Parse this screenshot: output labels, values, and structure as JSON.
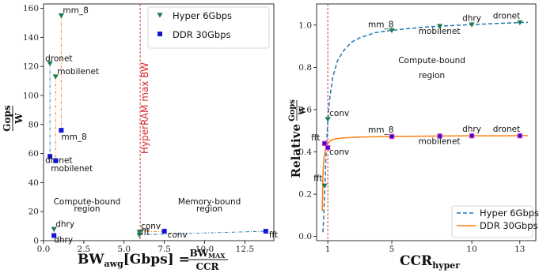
{
  "colors": {
    "hyper": "#1f7a4d",
    "ddr": "#1414d4",
    "hyper_line": "#1f77b4",
    "ddr_line": "#ff7f0e",
    "limit": "#d62728"
  },
  "chart_data": [
    {
      "type": "scatter",
      "title": "",
      "xlabel": "BW_awg[Gbps] = BW_MAX / CCR",
      "xlabel_main": "BW",
      "xlabel_sub": "awg",
      "xlabel_unit": "[Gbps] =",
      "xlabel_num": "BW",
      "xlabel_num_sub": "MAX",
      "xlabel_den": "CCR",
      "ylabel": "Gops / W",
      "ylabel_num": "Gops",
      "ylabel_den": "W",
      "xlim": [
        0,
        14.3
      ],
      "ylim": [
        0,
        163
      ],
      "xticks": [
        "0.0",
        "2.5",
        "5.0",
        "7.5",
        "10.0",
        "12.5"
      ],
      "xtick_values": [
        0,
        2.5,
        5,
        7.5,
        10,
        12.5
      ],
      "yticks": [
        "0",
        "20",
        "40",
        "60",
        "80",
        "100",
        "120",
        "140",
        "160"
      ],
      "ytick_values": [
        0,
        20,
        40,
        60,
        80,
        100,
        120,
        140,
        160
      ],
      "vline": {
        "x": 6.0,
        "label": "HyperRAM max BW"
      },
      "region_labels": [
        {
          "text": "Compute-bound",
          "x": 2.7,
          "y": 25
        },
        {
          "text": "region",
          "x": 2.7,
          "y": 20
        },
        {
          "text": "Memory-bound",
          "x": 10.3,
          "y": 25
        },
        {
          "text": "region",
          "x": 10.3,
          "y": 20
        }
      ],
      "legend": {
        "placement": "top-right"
      },
      "series": [
        {
          "name": "Hyper 6Gbps",
          "marker": "triangle-down",
          "points": [
            {
              "label": "mm_8",
              "x": 1.1,
              "y": 155
            },
            {
              "label": "dronet",
              "x": 0.4,
              "y": 122
            },
            {
              "label": "mobilenet",
              "x": 0.75,
              "y": 113
            },
            {
              "label": "dhry",
              "x": 0.65,
              "y": 8
            },
            {
              "label": "conv",
              "x": 5.95,
              "y": 6
            },
            {
              "label": "fft",
              "x": 5.95,
              "y": 4
            }
          ]
        },
        {
          "name": "DDR 30Gbps",
          "marker": "square",
          "points": [
            {
              "label": "mm_8",
              "x": 1.1,
              "y": 76
            },
            {
              "label": "dronet",
              "x": 0.4,
              "y": 58
            },
            {
              "label": "mobilenet",
              "x": 0.75,
              "y": 55
            },
            {
              "label": "dhry",
              "x": 0.65,
              "y": 3.5
            },
            {
              "label": "conv",
              "x": 7.5,
              "y": 6.5
            },
            {
              "label": "fft",
              "x": 13.8,
              "y": 6.5
            }
          ]
        }
      ]
    },
    {
      "type": "line",
      "title": "",
      "xlabel": "CCR_hyper",
      "xlabel_main": "CCR",
      "xlabel_sub": "hyper",
      "ylabel": "Relative Gops / W",
      "ylabel_main": "Relative",
      "ylabel_num": "Gops",
      "ylabel_den": "W",
      "xlim": [
        0.3,
        14.0
      ],
      "ylim": [
        -0.02,
        1.1
      ],
      "xticks": [
        "1",
        "5",
        "10",
        "13"
      ],
      "xtick_values": [
        1,
        5,
        10,
        13
      ],
      "yticks": [
        "0.0",
        "0.2",
        "0.4",
        "0.6",
        "0.8",
        "1.0"
      ],
      "ytick_values": [
        0,
        0.2,
        0.4,
        0.6,
        0.8,
        1.0
      ],
      "vline": {
        "x": 1.0
      },
      "region_labels": [
        {
          "text": "Compute-bound",
          "x": 7.5,
          "y": 0.82
        },
        {
          "text": "region",
          "x": 7.5,
          "y": 0.75
        }
      ],
      "legend": {
        "placement": "bottom-right"
      },
      "series": [
        {
          "name": "Hyper 6Gbps",
          "style": "dashed",
          "curve_x": [
            0.7,
            0.8,
            0.9,
            1.0,
            1.1,
            1.3,
            1.6,
            2.0,
            2.5,
            3.0,
            4.0,
            5.0,
            6.0,
            7.0,
            8.0,
            9.0,
            10.0,
            11.0,
            12.0,
            13.0,
            13.5
          ],
          "curve_y": [
            0.02,
            0.2,
            0.4,
            0.55,
            0.64,
            0.75,
            0.83,
            0.88,
            0.92,
            0.94,
            0.965,
            0.975,
            0.983,
            0.99,
            0.995,
            0.999,
            1.002,
            1.006,
            1.009,
            1.012,
            1.013
          ],
          "points": [
            {
              "label": "fft",
              "x": 0.8,
              "y": 0.24
            },
            {
              "label": "conv",
              "x": 1.0,
              "y": 0.555
            },
            {
              "label": "mm_8",
              "x": 5.0,
              "y": 0.975
            },
            {
              "label": "mobilenet",
              "x": 8.0,
              "y": 0.995
            },
            {
              "label": "dhry",
              "x": 10.0,
              "y": 1.002
            },
            {
              "label": "dronet",
              "x": 13.0,
              "y": 1.012
            }
          ]
        },
        {
          "name": "DDR 30Gbps",
          "style": "solid",
          "curve_x": [
            0.65,
            0.7,
            0.75,
            0.8,
            0.9,
            1.0,
            1.2,
            1.5,
            2.0,
            3.0,
            4.0,
            5.0,
            6.0,
            8.0,
            10.0,
            12.0,
            13.5
          ],
          "curve_y": [
            0.12,
            0.3,
            0.36,
            0.39,
            0.42,
            0.44,
            0.455,
            0.462,
            0.466,
            0.47,
            0.472,
            0.473,
            0.474,
            0.475,
            0.476,
            0.476,
            0.477
          ],
          "points": [
            {
              "label": "fft",
              "x": 0.8,
              "y": 0.44
            },
            {
              "label": "conv",
              "x": 1.0,
              "y": 0.42
            },
            {
              "label": "mm_8",
              "x": 5.0,
              "y": 0.473
            },
            {
              "label": "mobilenet",
              "x": 8.0,
              "y": 0.475
            },
            {
              "label": "dhry",
              "x": 10.0,
              "y": 0.476
            },
            {
              "label": "dronet",
              "x": 13.0,
              "y": 0.476
            }
          ]
        }
      ]
    }
  ]
}
